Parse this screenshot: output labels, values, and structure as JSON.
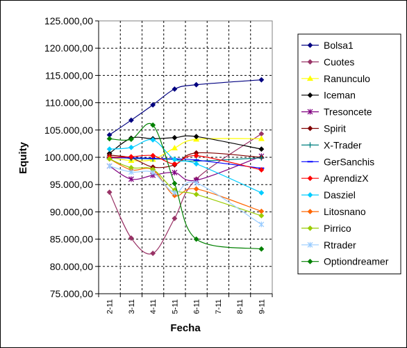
{
  "chart_data": {
    "type": "line",
    "title": "",
    "xlabel": "Fecha",
    "ylabel": "Equity",
    "categories": [
      "2-11",
      "3-11",
      "4-11",
      "5-11",
      "6-11",
      "7-11",
      "8-11",
      "9-11"
    ],
    "yticks": [
      "75.000,00",
      "80.000,00",
      "85.000,00",
      "90.000,00",
      "95.000,00",
      "100.000,00",
      "105.000,00",
      "110.000,00",
      "115.000,00",
      "120.000,00",
      "125.000,00"
    ],
    "ylim": [
      75000,
      125000
    ],
    "grid": true,
    "legend": "right",
    "series": [
      {
        "name": "Bolsa1",
        "color": "#000080",
        "marker": "diamond",
        "values": [
          104100,
          106800,
          109600,
          112500,
          113300,
          null,
          null,
          114200
        ]
      },
      {
        "name": "Cuotes",
        "color": "#993366",
        "marker": "diamond",
        "values": [
          93600,
          85200,
          82400,
          88800,
          96000,
          null,
          null,
          104300
        ]
      },
      {
        "name": "Ranunculo",
        "color": "#ffff00",
        "marker": "triangle",
        "values": [
          100000,
          99400,
          99600,
          101700,
          103300,
          null,
          null,
          103400
        ]
      },
      {
        "name": "Iceman",
        "color": "#000000",
        "marker": "diamond",
        "values": [
          100700,
          103500,
          103400,
          103600,
          103800,
          null,
          null,
          101500
        ]
      },
      {
        "name": "Tresoncete",
        "color": "#800080",
        "marker": "star",
        "values": [
          98400,
          96000,
          96700,
          97200,
          95800,
          null,
          null,
          100200
        ]
      },
      {
        "name": "Spirit",
        "color": "#800000",
        "marker": "diamond",
        "values": [
          100400,
          99900,
          98200,
          98600,
          100800,
          null,
          null,
          100000
        ]
      },
      {
        "name": "X-Trader",
        "color": "#008080",
        "marker": "plus",
        "values": [
          100100,
          99800,
          99700,
          99600,
          99300,
          null,
          null,
          99900
        ]
      },
      {
        "name": "GerSanchis",
        "color": "#0000ff",
        "marker": "dash",
        "values": [
          99900,
          99900,
          99800,
          99700,
          99500,
          null,
          null,
          98000
        ]
      },
      {
        "name": "AprendizX",
        "color": "#ff0000",
        "marker": "diamond",
        "values": [
          100000,
          100100,
          100300,
          98800,
          100300,
          null,
          null,
          97700
        ]
      },
      {
        "name": "Dasziel",
        "color": "#00ccff",
        "marker": "diamond",
        "values": [
          101500,
          101800,
          103200,
          99600,
          98800,
          null,
          null,
          93500
        ]
      },
      {
        "name": "Litosnano",
        "color": "#ff6600",
        "marker": "diamond",
        "values": [
          99700,
          97700,
          97700,
          93000,
          94200,
          null,
          null,
          90100
        ]
      },
      {
        "name": "Pirrico",
        "color": "#99cc00",
        "marker": "diamond",
        "values": [
          99700,
          98100,
          97800,
          94000,
          93200,
          null,
          null,
          89300
        ]
      },
      {
        "name": "Rtrader",
        "color": "#99ccff",
        "marker": "star",
        "values": [
          98400,
          97300,
          97200,
          93500,
          95300,
          null,
          null,
          87700
        ]
      },
      {
        "name": "Optiondreamer",
        "color": "#008000",
        "marker": "diamond",
        "values": [
          103400,
          103300,
          105900,
          95200,
          85000,
          null,
          null,
          83200
        ]
      }
    ]
  }
}
